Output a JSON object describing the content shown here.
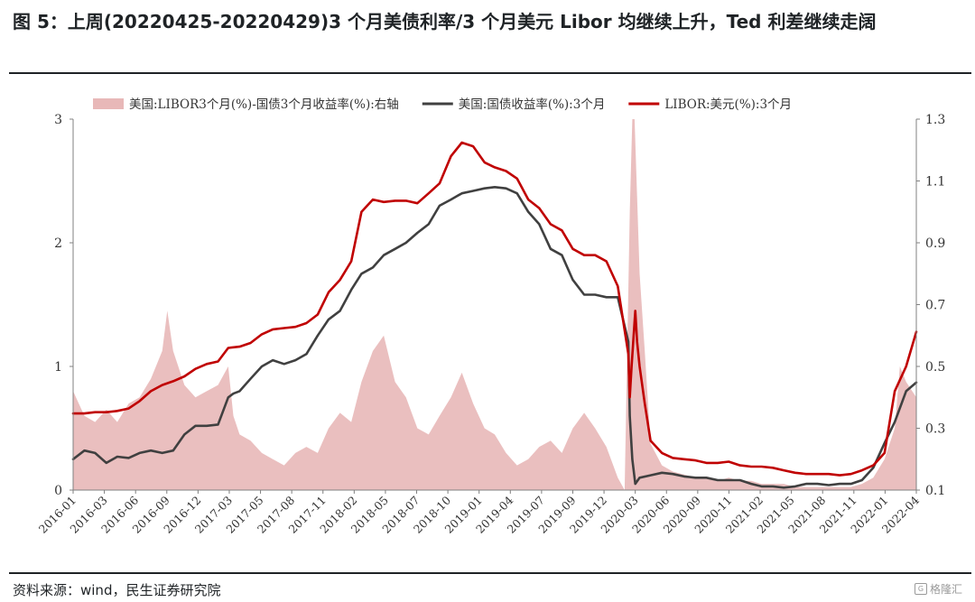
{
  "header": {
    "title": "图 5：上周(20220425-20220429)3 个月美债利率/3 个月美元 Libor 均继续上升，Ted 利差继续走阔"
  },
  "footer": {
    "source": "资料来源：wind，民生证券研究院",
    "watermark": "格隆汇"
  },
  "chart_data": {
    "type": "line",
    "legend_position": "top",
    "grid": false,
    "x_ticks": [
      "2016-01",
      "2016-03",
      "2016-06",
      "2016-09",
      "2016-12",
      "2017-03",
      "2017-05",
      "2017-08",
      "2017-11",
      "2018-02",
      "2018-05",
      "2018-07",
      "2018-10",
      "2019-01",
      "2019-04",
      "2019-07",
      "2019-09",
      "2019-12",
      "2020-03",
      "2020-06",
      "2020-09",
      "2020-11",
      "2021-02",
      "2021-05",
      "2021-08",
      "2021-11",
      "2022-01",
      "2022-04"
    ],
    "y_left": {
      "ticks": [
        "0",
        "1",
        "2",
        "3"
      ],
      "range": [
        0,
        3
      ]
    },
    "y_right": {
      "ticks": [
        "0.1",
        "0.3",
        "0.5",
        "0.7",
        "0.9",
        "1.1",
        "1.3"
      ],
      "range": [
        0.1,
        1.3
      ]
    },
    "series": [
      {
        "name": "美国:LIBOR3个月(%)-国债3个月收益率(%):右轴",
        "kind": "area",
        "axis": "right",
        "color": "#e8b8b8",
        "x": [
          "2016-01-01",
          "2016-02-01",
          "2016-03-01",
          "2016-04-01",
          "2016-05-01",
          "2016-06-01",
          "2016-07-01",
          "2016-08-01",
          "2016-09-01",
          "2016-09-15",
          "2016-10-01",
          "2016-11-01",
          "2016-12-01",
          "2017-01-01",
          "2017-02-01",
          "2017-03-01",
          "2017-03-15",
          "2017-04-01",
          "2017-05-01",
          "2017-06-01",
          "2017-07-01",
          "2017-08-01",
          "2017-09-01",
          "2017-10-01",
          "2017-11-01",
          "2017-12-01",
          "2018-01-01",
          "2018-02-01",
          "2018-03-01",
          "2018-04-01",
          "2018-05-01",
          "2018-06-01",
          "2018-07-01",
          "2018-08-01",
          "2018-09-01",
          "2018-10-01",
          "2018-11-01",
          "2018-12-01",
          "2019-01-01",
          "2019-02-01",
          "2019-03-01",
          "2019-04-01",
          "2019-05-01",
          "2019-06-01",
          "2019-07-01",
          "2019-08-01",
          "2019-09-01",
          "2019-10-01",
          "2019-11-01",
          "2019-12-01",
          "2020-01-01",
          "2020-02-01",
          "2020-02-20",
          "2020-03-05",
          "2020-03-12",
          "2020-03-18",
          "2020-03-25",
          "2020-04-01",
          "2020-04-15",
          "2020-05-01",
          "2020-06-01",
          "2020-07-01",
          "2020-08-01",
          "2020-09-01",
          "2020-10-01",
          "2020-11-01",
          "2020-12-01",
          "2021-01-01",
          "2021-02-01",
          "2021-03-01",
          "2021-04-01",
          "2021-05-01",
          "2021-06-01",
          "2021-07-01",
          "2021-08-01",
          "2021-09-01",
          "2021-10-01",
          "2021-11-01",
          "2021-12-01",
          "2022-01-01",
          "2022-02-01",
          "2022-03-01",
          "2022-03-15",
          "2022-04-01",
          "2022-04-29"
        ],
        "values": [
          0.42,
          0.34,
          0.32,
          0.36,
          0.32,
          0.38,
          0.4,
          0.46,
          0.55,
          0.68,
          0.55,
          0.44,
          0.4,
          0.42,
          0.44,
          0.5,
          0.34,
          0.28,
          0.26,
          0.22,
          0.2,
          0.18,
          0.22,
          0.24,
          0.22,
          0.3,
          0.35,
          0.32,
          0.45,
          0.55,
          0.6,
          0.45,
          0.4,
          0.3,
          0.28,
          0.34,
          0.4,
          0.48,
          0.38,
          0.3,
          0.28,
          0.22,
          0.18,
          0.2,
          0.24,
          0.26,
          0.22,
          0.3,
          0.35,
          0.3,
          0.24,
          0.14,
          0.1,
          1.0,
          1.3,
          1.3,
          1.05,
          0.8,
          0.55,
          0.25,
          0.18,
          0.16,
          0.15,
          0.14,
          0.14,
          0.13,
          0.14,
          0.13,
          0.13,
          0.12,
          0.12,
          0.12,
          0.11,
          0.11,
          0.11,
          0.11,
          0.11,
          0.11,
          0.12,
          0.14,
          0.2,
          0.3,
          0.5,
          0.45,
          0.4
        ]
      },
      {
        "name": "美国:国债收益率(%):3个月",
        "kind": "line",
        "axis": "left",
        "color": "#404040",
        "x": [
          "2016-01-01",
          "2016-02-01",
          "2016-03-01",
          "2016-04-01",
          "2016-05-01",
          "2016-06-01",
          "2016-07-01",
          "2016-08-01",
          "2016-09-01",
          "2016-10-01",
          "2016-11-01",
          "2016-12-01",
          "2017-01-01",
          "2017-02-01",
          "2017-03-01",
          "2017-03-15",
          "2017-04-01",
          "2017-05-01",
          "2017-06-01",
          "2017-07-01",
          "2017-08-01",
          "2017-09-01",
          "2017-10-01",
          "2017-11-01",
          "2017-12-01",
          "2018-01-01",
          "2018-02-01",
          "2018-03-01",
          "2018-04-01",
          "2018-05-01",
          "2018-06-01",
          "2018-07-01",
          "2018-08-01",
          "2018-09-01",
          "2018-10-01",
          "2018-11-01",
          "2018-12-01",
          "2019-01-01",
          "2019-02-01",
          "2019-03-01",
          "2019-04-01",
          "2019-05-01",
          "2019-06-01",
          "2019-07-01",
          "2019-08-01",
          "2019-09-01",
          "2019-10-01",
          "2019-11-01",
          "2019-12-01",
          "2020-01-01",
          "2020-02-01",
          "2020-03-01",
          "2020-03-05",
          "2020-03-12",
          "2020-03-20",
          "2020-04-01",
          "2020-05-01",
          "2020-06-01",
          "2020-07-01",
          "2020-08-01",
          "2020-09-01",
          "2020-10-01",
          "2020-11-01",
          "2020-12-01",
          "2021-01-01",
          "2021-02-01",
          "2021-03-01",
          "2021-04-01",
          "2021-05-01",
          "2021-06-01",
          "2021-07-01",
          "2021-08-01",
          "2021-09-01",
          "2021-10-01",
          "2021-11-01",
          "2021-12-01",
          "2022-01-01",
          "2022-02-01",
          "2022-03-01",
          "2022-04-01",
          "2022-04-29"
        ],
        "values": [
          0.25,
          0.32,
          0.3,
          0.22,
          0.27,
          0.26,
          0.3,
          0.32,
          0.3,
          0.32,
          0.45,
          0.52,
          0.52,
          0.53,
          0.75,
          0.78,
          0.8,
          0.9,
          1.0,
          1.05,
          1.02,
          1.05,
          1.1,
          1.25,
          1.38,
          1.45,
          1.62,
          1.75,
          1.8,
          1.9,
          1.95,
          2.0,
          2.08,
          2.15,
          2.3,
          2.35,
          2.4,
          2.42,
          2.44,
          2.45,
          2.44,
          2.4,
          2.25,
          2.15,
          1.95,
          1.9,
          1.7,
          1.58,
          1.58,
          1.56,
          1.56,
          1.2,
          0.6,
          0.25,
          0.05,
          0.1,
          0.12,
          0.14,
          0.13,
          0.11,
          0.1,
          0.1,
          0.08,
          0.08,
          0.08,
          0.05,
          0.03,
          0.03,
          0.02,
          0.03,
          0.05,
          0.05,
          0.04,
          0.05,
          0.05,
          0.08,
          0.18,
          0.38,
          0.55,
          0.8,
          0.87
        ]
      },
      {
        "name": "LIBOR:美元(%):3个月",
        "kind": "line",
        "axis": "left",
        "color": "#c00000",
        "x": [
          "2016-01-01",
          "2016-02-01",
          "2016-03-01",
          "2016-04-01",
          "2016-05-01",
          "2016-06-01",
          "2016-07-01",
          "2016-08-01",
          "2016-09-01",
          "2016-10-01",
          "2016-11-01",
          "2016-12-01",
          "2017-01-01",
          "2017-02-01",
          "2017-03-01",
          "2017-04-01",
          "2017-05-01",
          "2017-06-01",
          "2017-07-01",
          "2017-08-01",
          "2017-09-01",
          "2017-10-01",
          "2017-11-01",
          "2017-12-01",
          "2018-01-01",
          "2018-02-01",
          "2018-03-01",
          "2018-04-01",
          "2018-05-01",
          "2018-06-01",
          "2018-07-01",
          "2018-08-01",
          "2018-09-01",
          "2018-10-01",
          "2018-11-01",
          "2018-12-01",
          "2019-01-01",
          "2019-02-01",
          "2019-03-01",
          "2019-04-01",
          "2019-05-01",
          "2019-06-01",
          "2019-07-01",
          "2019-08-01",
          "2019-09-01",
          "2019-10-01",
          "2019-11-01",
          "2019-12-01",
          "2020-01-01",
          "2020-02-01",
          "2020-03-01",
          "2020-03-05",
          "2020-03-10",
          "2020-03-20",
          "2020-03-25",
          "2020-04-01",
          "2020-04-15",
          "2020-05-01",
          "2020-06-01",
          "2020-07-01",
          "2020-08-01",
          "2020-09-01",
          "2020-10-01",
          "2020-11-01",
          "2020-12-01",
          "2021-01-01",
          "2021-02-01",
          "2021-03-01",
          "2021-04-01",
          "2021-05-01",
          "2021-06-01",
          "2021-07-01",
          "2021-08-01",
          "2021-09-01",
          "2021-10-01",
          "2021-11-01",
          "2021-12-01",
          "2022-01-01",
          "2022-02-01",
          "2022-03-01",
          "2022-04-01",
          "2022-04-29"
        ],
        "values": [
          0.62,
          0.62,
          0.63,
          0.63,
          0.64,
          0.66,
          0.72,
          0.8,
          0.85,
          0.88,
          0.92,
          0.98,
          1.02,
          1.04,
          1.15,
          1.16,
          1.19,
          1.26,
          1.3,
          1.31,
          1.32,
          1.35,
          1.42,
          1.6,
          1.7,
          1.85,
          2.25,
          2.35,
          2.33,
          2.34,
          2.34,
          2.32,
          2.4,
          2.48,
          2.7,
          2.81,
          2.78,
          2.65,
          2.61,
          2.58,
          2.52,
          2.35,
          2.28,
          2.15,
          2.1,
          1.95,
          1.9,
          1.9,
          1.85,
          1.65,
          1.1,
          0.75,
          1.0,
          1.45,
          1.2,
          1.0,
          0.7,
          0.4,
          0.3,
          0.26,
          0.25,
          0.24,
          0.22,
          0.22,
          0.23,
          0.2,
          0.19,
          0.19,
          0.18,
          0.16,
          0.14,
          0.13,
          0.13,
          0.13,
          0.12,
          0.13,
          0.16,
          0.2,
          0.3,
          0.8,
          1.0,
          1.28
        ]
      }
    ]
  }
}
